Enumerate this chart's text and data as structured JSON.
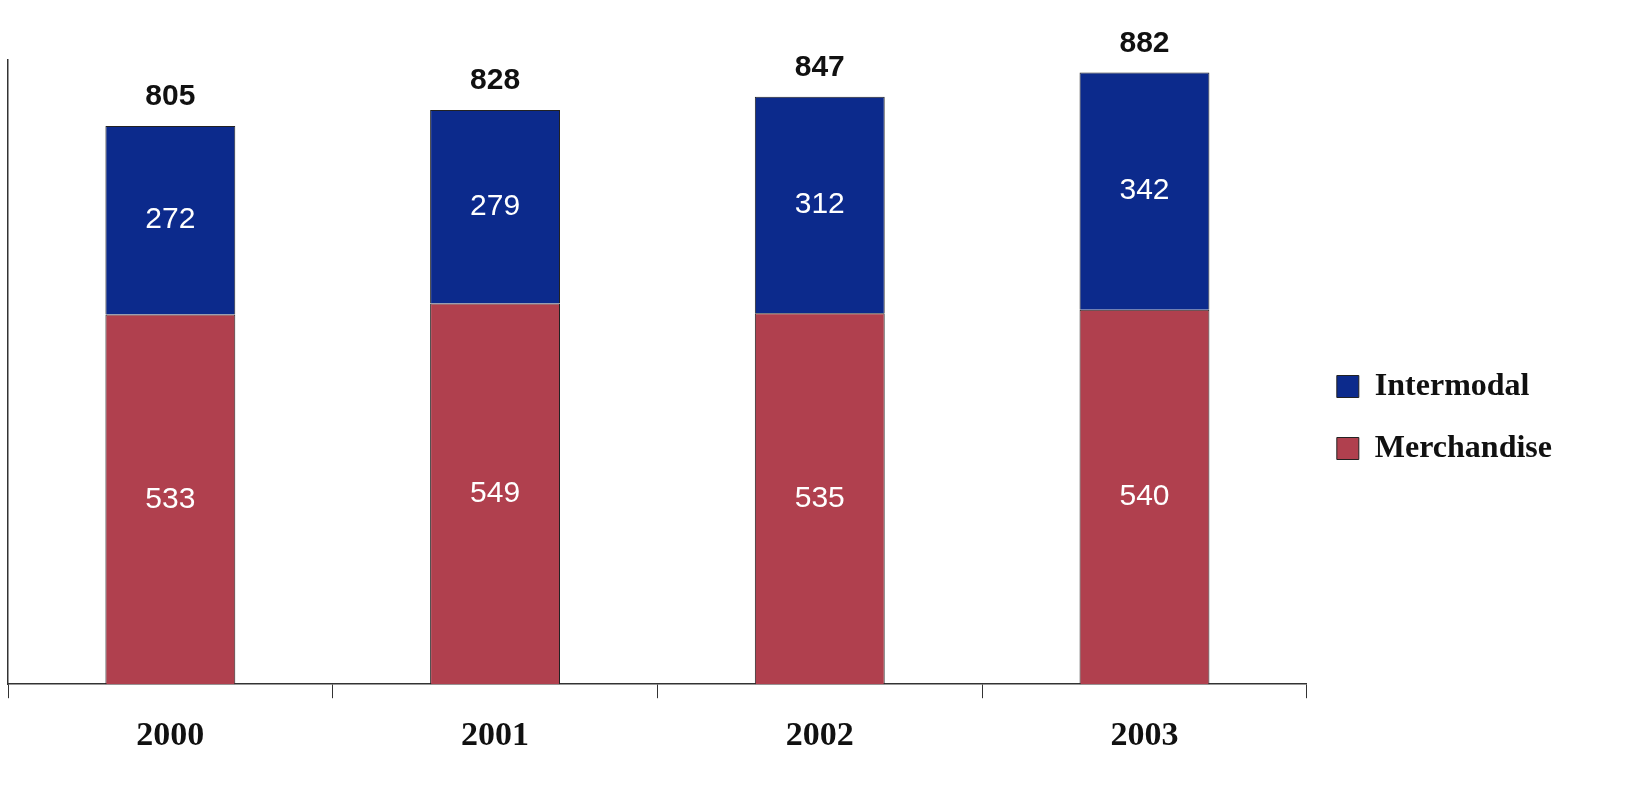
{
  "chart_data": {
    "type": "bar",
    "categories": [
      "2000",
      "2001",
      "2002",
      "2003"
    ],
    "stacked": true,
    "series": [
      {
        "name": "Merchandise",
        "color": "#b0404e",
        "values": [
          533,
          549,
          535,
          540
        ]
      },
      {
        "name": "Intermodal",
        "color": "#0c2a8c",
        "values": [
          272,
          279,
          312,
          342
        ]
      }
    ],
    "data_labels": true,
    "totals": [
      "805",
      "828",
      "847",
      "882"
    ],
    "legend": "right",
    "tick_labels": "x",
    "grid": false
  }
}
